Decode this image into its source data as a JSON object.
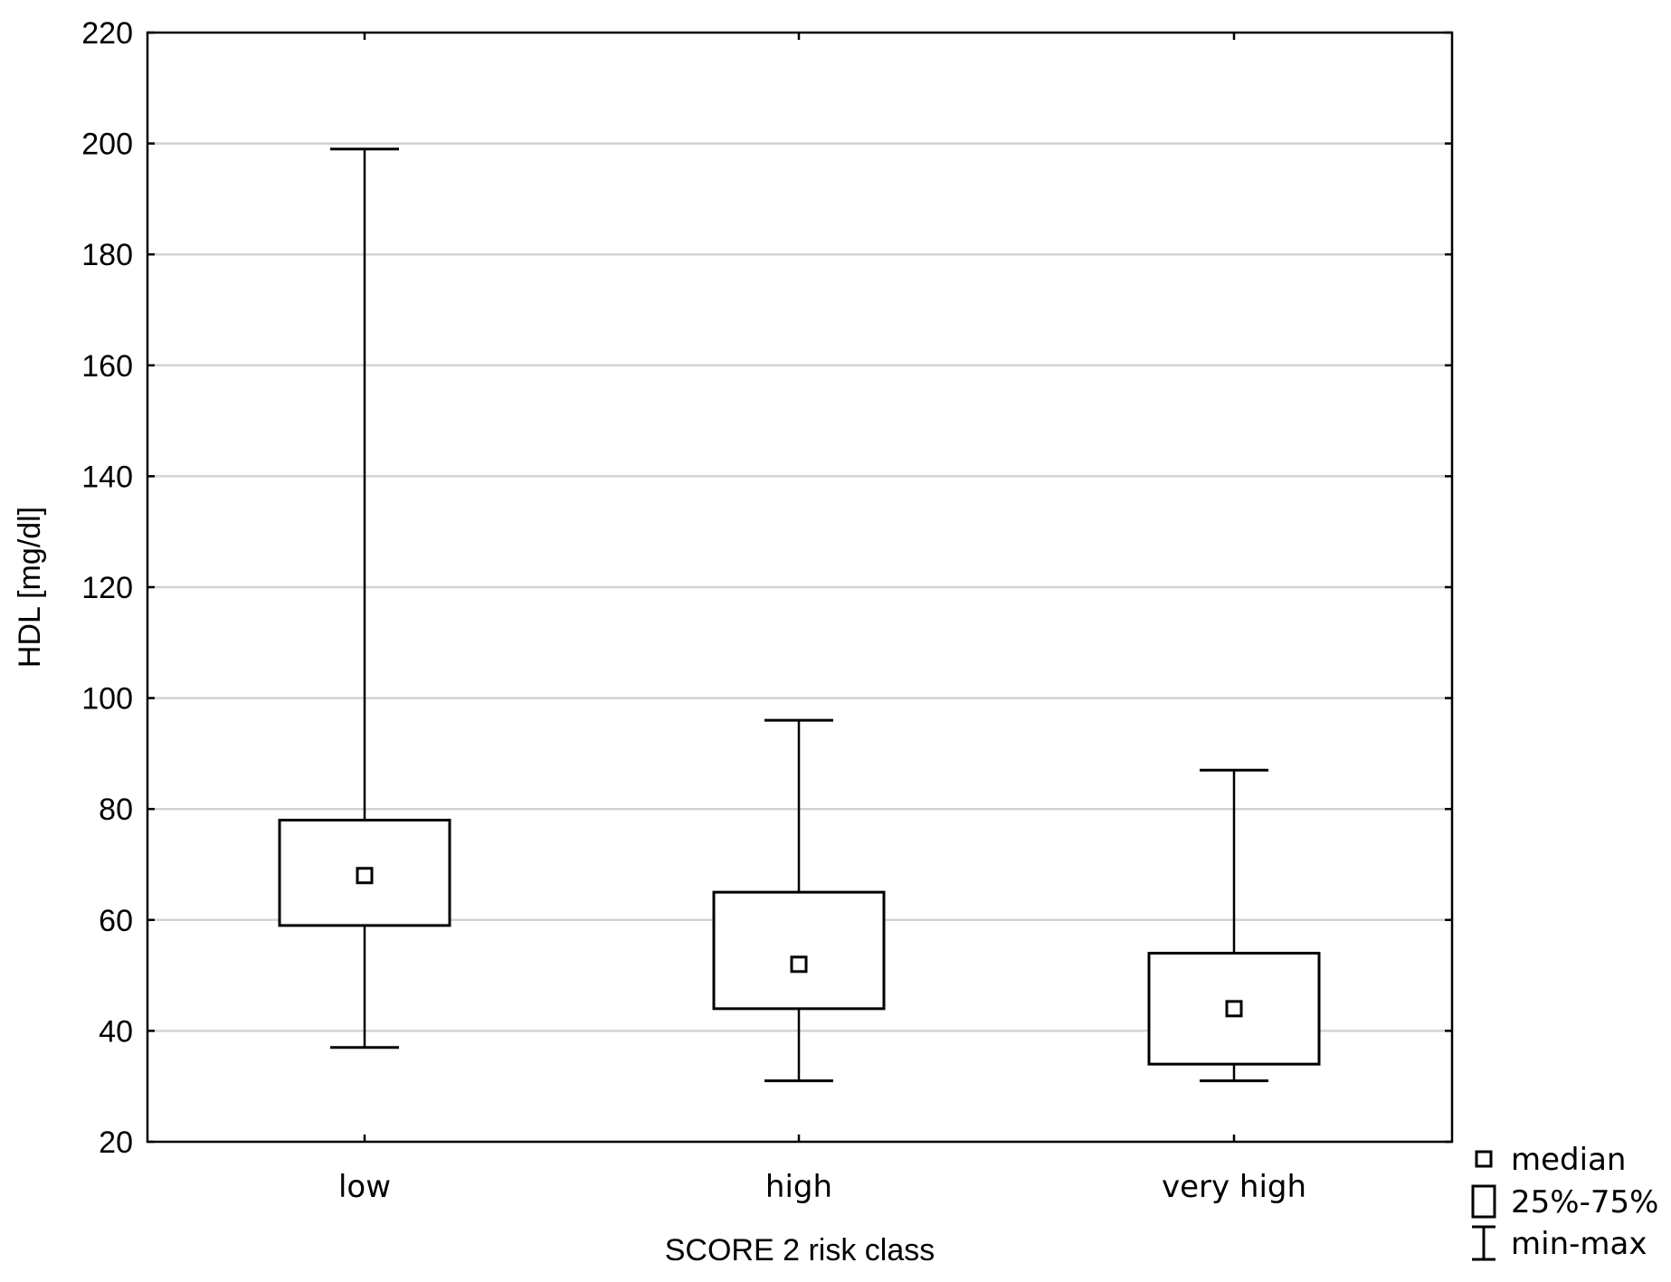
{
  "chart_data": {
    "type": "boxplot",
    "xlabel": "SCORE 2 risk class",
    "ylabel": "HDL [mg/dl]",
    "ylim": [
      20,
      220
    ],
    "yticks": [
      20,
      40,
      60,
      80,
      100,
      120,
      140,
      160,
      180,
      200,
      220
    ],
    "grid": true,
    "legend_position": "bottom-right",
    "categories": [
      "low",
      "high",
      "very high"
    ],
    "boxes": [
      {
        "category": "low",
        "min": 37,
        "q1": 59,
        "median": 68,
        "q3": 78,
        "max": 199
      },
      {
        "category": "high",
        "min": 31,
        "q1": 44,
        "median": 52,
        "q3": 65,
        "max": 96
      },
      {
        "category": "very high",
        "min": 31,
        "q1": 34,
        "median": 44,
        "q3": 54,
        "max": 87
      }
    ],
    "legend": [
      {
        "symbol": "small-square",
        "label": "median"
      },
      {
        "symbol": "box",
        "label": "25%-75%"
      },
      {
        "symbol": "whisker",
        "label": "min-max"
      }
    ],
    "colors": {
      "line": "#000000",
      "grid": "#d3d3d3",
      "box_fill": "#ffffff"
    }
  }
}
